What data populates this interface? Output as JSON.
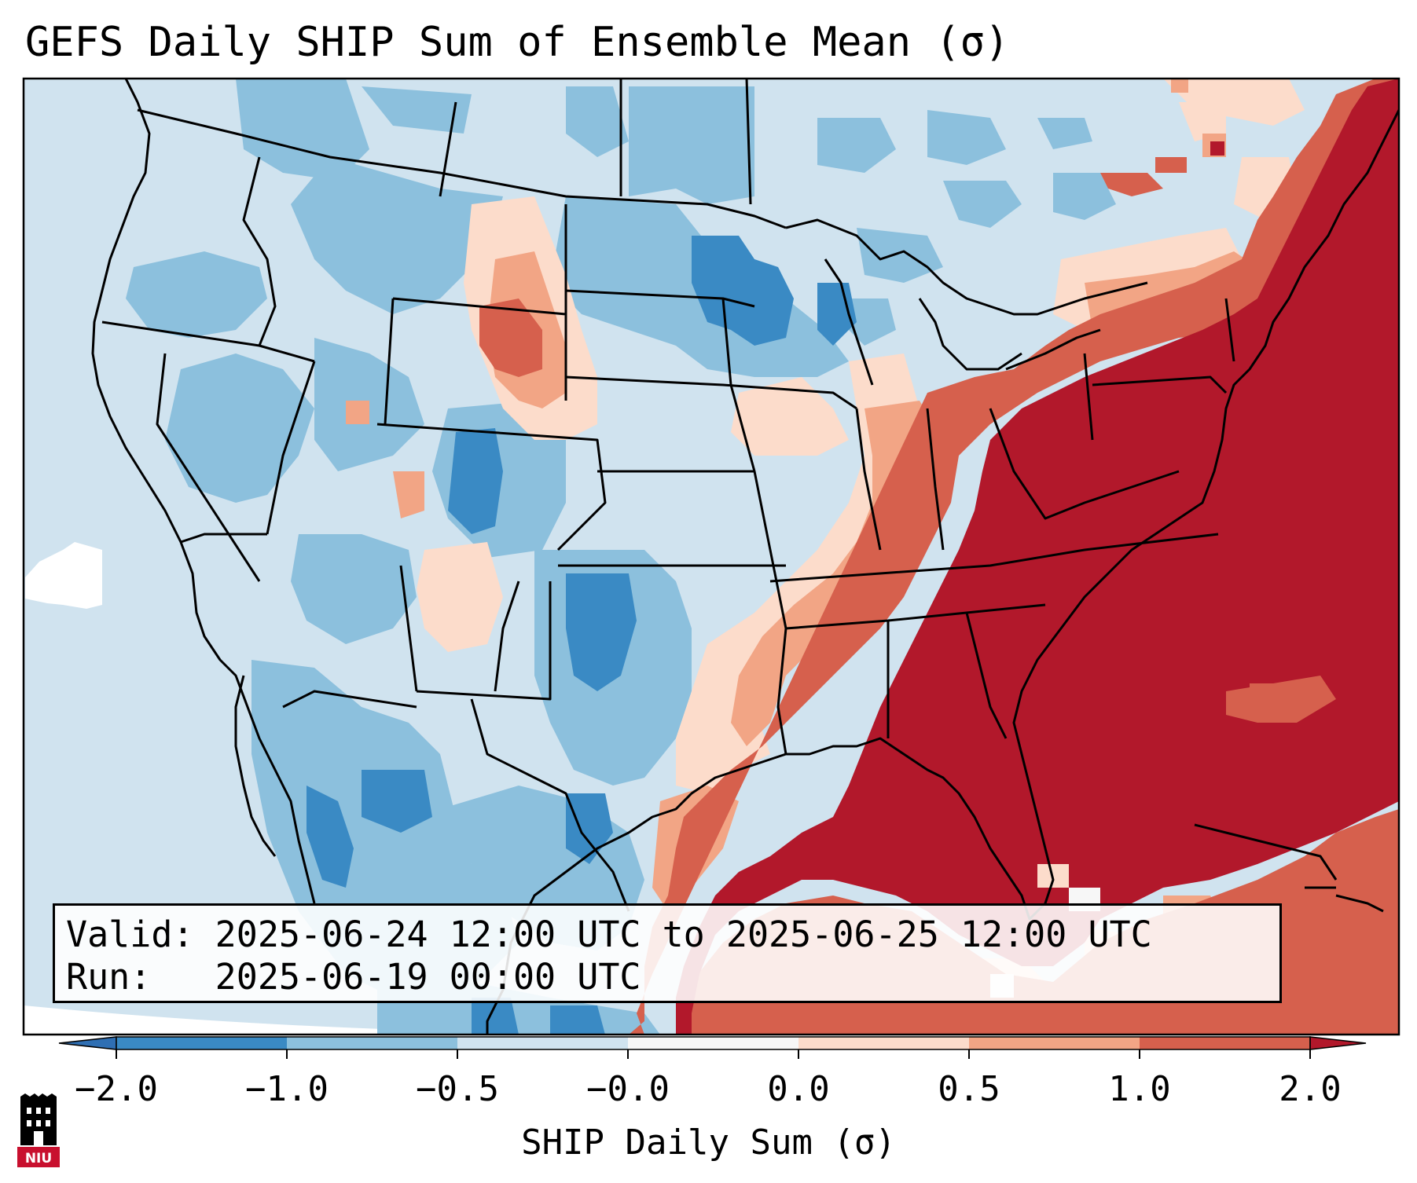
{
  "title": "GEFS Daily SHIP Sum of Ensemble Mean (σ)",
  "info": {
    "valid_label": "Valid:",
    "valid_text": "2025-06-24 12:00 UTC to 2025-06-25 12:00 UTC",
    "run_label": "Run:",
    "run_text": "2025-06-19 00:00 UTC"
  },
  "colorbar": {
    "label": "SHIP Daily Sum (σ)",
    "ticks": [
      "−2.0",
      "−1.0",
      "−0.5",
      "−0.0",
      "0.0",
      "0.5",
      "1.0",
      "2.0"
    ],
    "colors": [
      "#3a8ac4",
      "#8cc0dd",
      "#d0e3ef",
      "#f7f7f7",
      "#fcdccb",
      "#f2a585",
      "#d6604d",
      "#b2182b"
    ],
    "under_color": "#2f6fb3",
    "over_color": "#9e1027"
  },
  "map": {
    "region": "Contiguous United States, southern Canada, northern Mexico",
    "ocean_color": "#d0e3ef",
    "outside_domain_color": "#ffffff"
  },
  "logo": {
    "text": "NIU",
    "color": "#c8102e"
  }
}
